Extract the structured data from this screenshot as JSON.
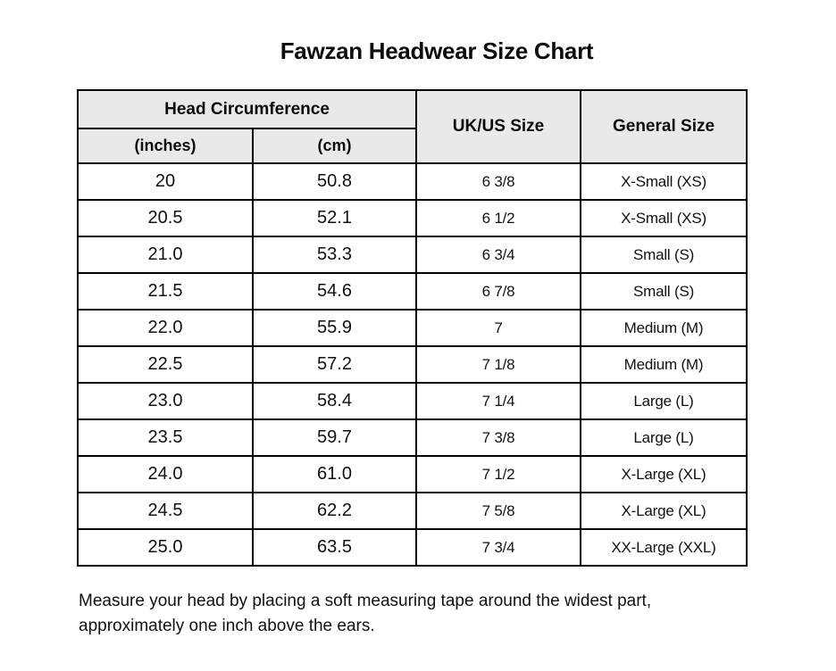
{
  "title": "Fawzan Headwear Size Chart",
  "colors": {
    "header_bg": "#e9e9e9",
    "border": "#000000",
    "text": "#111111",
    "background": "#ffffff"
  },
  "chart_data": {
    "type": "table",
    "title": "Fawzan Headwear Size Chart",
    "column_groups": [
      {
        "label": "Head Circumference",
        "span": 2
      }
    ],
    "columns": [
      "(inches)",
      "(cm)",
      "UK/US Size",
      "General Size"
    ],
    "rows": [
      [
        "20",
        "50.8",
        "6 3/8",
        "X-Small (XS)"
      ],
      [
        "20.5",
        "52.1",
        "6 1/2",
        "X-Small (XS)"
      ],
      [
        "21.0",
        "53.3",
        "6 3/4",
        "Small (S)"
      ],
      [
        "21.5",
        "54.6",
        "6 7/8",
        "Small (S)"
      ],
      [
        "22.0",
        "55.9",
        "7",
        "Medium (M)"
      ],
      [
        "22.5",
        "57.2",
        "7 1/8",
        "Medium (M)"
      ],
      [
        "23.0",
        "58.4",
        "7 1/4",
        "Large (L)"
      ],
      [
        "23.5",
        "59.7",
        "7 3/8",
        "Large (L)"
      ],
      [
        "24.0",
        "61.0",
        "7 1/2",
        "X-Large (XL)"
      ],
      [
        "24.5",
        "62.2",
        "7 5/8",
        "X-Large (XL)"
      ],
      [
        "25.0",
        "63.5",
        "7 3/4",
        "XX-Large (XXL)"
      ]
    ]
  },
  "footer_note": "Measure your head by placing a soft measuring tape around the widest part,\napproximately one inch above the ears."
}
